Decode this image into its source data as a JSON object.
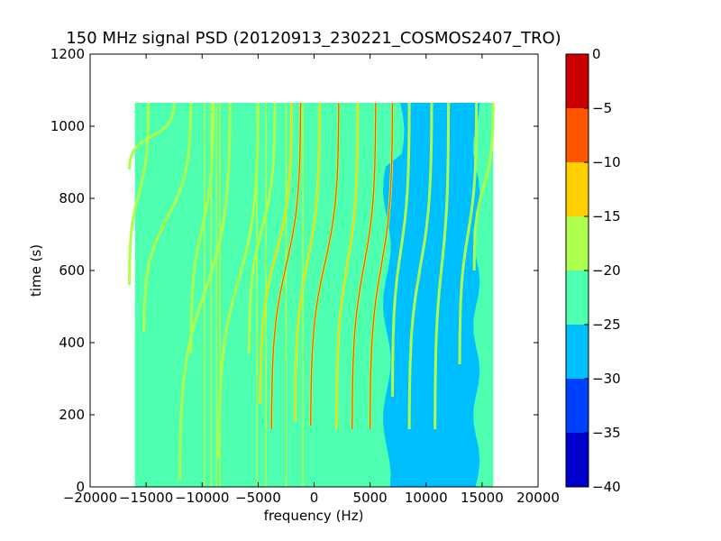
{
  "chart_data": {
    "type": "heatmap",
    "title": "150 MHz signal PSD (20120913_230221_COSMOS2407_TRO)",
    "xlabel": "frequency (Hz)",
    "ylabel": "time (s)",
    "xlim": [
      -20000,
      20000
    ],
    "ylim": [
      0,
      1200
    ],
    "x_ticks": [
      -20000,
      -15000,
      -10000,
      -5000,
      0,
      5000,
      10000,
      15000,
      20000
    ],
    "x_tick_labels": [
      "−20000",
      "−15000",
      "−10000",
      "−5000",
      "0",
      "5000",
      "10000",
      "15000",
      "20000"
    ],
    "y_ticks": [
      0,
      200,
      400,
      600,
      800,
      1000,
      1200
    ],
    "y_tick_labels": [
      "0",
      "200",
      "400",
      "600",
      "800",
      "1000",
      "1200"
    ],
    "data_extent": {
      "x": [
        -16000,
        16000
      ],
      "y": [
        0,
        1065
      ]
    },
    "colorbar": {
      "levels": [
        -40,
        -35,
        -30,
        -25,
        -20,
        -15,
        -10,
        -5,
        0
      ],
      "tick_labels": [
        "−40",
        "−35",
        "−30",
        "−25",
        "−20",
        "−15",
        "−10",
        "−5",
        "0"
      ],
      "colors": [
        "#0000cd",
        "#0040ff",
        "#00bfff",
        "#4dffaf",
        "#afff4d",
        "#ffcf00",
        "#ff5500",
        "#cd0000"
      ]
    },
    "background_level_range": [
      -25,
      -20
    ],
    "quiet_band": {
      "level_range": [
        -30,
        -25
      ],
      "x_range": [
        6500,
        14500
      ]
    },
    "vertical_lines_x": [
      -9800,
      -9200,
      -8700,
      -8400,
      -5100,
      -4300,
      -2500,
      -1000
    ],
    "traces": [
      {
        "x_top": -14800,
        "x_bottom": -16500,
        "y_top": 1065,
        "y_bottom": 560,
        "peak": -15
      },
      {
        "x_top": -12500,
        "x_bottom": -16500,
        "y_top": 1065,
        "y_bottom": 880,
        "peak": -15
      },
      {
        "x_top": -11000,
        "x_bottom": -15200,
        "y_top": 1065,
        "y_bottom": 430,
        "peak": -15
      },
      {
        "x_top": -9000,
        "x_bottom": -11000,
        "y_top": 1065,
        "y_bottom": 370,
        "peak": -15
      },
      {
        "x_top": -7500,
        "x_bottom": -12000,
        "y_top": 1065,
        "y_bottom": 20,
        "peak": -15
      },
      {
        "x_top": -5000,
        "x_bottom": -8500,
        "y_top": 1065,
        "y_bottom": 80,
        "peak": -15
      },
      {
        "x_top": -3500,
        "x_bottom": -5800,
        "y_top": 1065,
        "y_bottom": 370,
        "peak": -15
      },
      {
        "x_top": -2000,
        "x_bottom": -4800,
        "y_top": 1065,
        "y_bottom": 230,
        "peak": -10
      },
      {
        "x_top": -1200,
        "x_bottom": -3800,
        "y_top": 1065,
        "y_bottom": 160,
        "peak": -5
      },
      {
        "x_top": 500,
        "x_bottom": -1700,
        "y_top": 1065,
        "y_bottom": 180,
        "peak": -10
      },
      {
        "x_top": 2200,
        "x_bottom": -300,
        "y_top": 1065,
        "y_bottom": 170,
        "peak": -5
      },
      {
        "x_top": 3900,
        "x_bottom": 2000,
        "y_top": 1065,
        "y_bottom": 160,
        "peak": -10
      },
      {
        "x_top": 5500,
        "x_bottom": 3400,
        "y_top": 1065,
        "y_bottom": 160,
        "peak": -5
      },
      {
        "x_top": 7000,
        "x_bottom": 5000,
        "y_top": 1065,
        "y_bottom": 160,
        "peak": -5
      },
      {
        "x_top": 8500,
        "x_bottom": 7000,
        "y_top": 1065,
        "y_bottom": 250,
        "peak": -15
      },
      {
        "x_top": 10500,
        "x_bottom": 8500,
        "y_top": 1065,
        "y_bottom": 160,
        "peak": -15
      },
      {
        "x_top": 12000,
        "x_bottom": 10800,
        "y_top": 1065,
        "y_bottom": 160,
        "peak": -15
      },
      {
        "x_top": 14500,
        "x_bottom": 13000,
        "y_top": 1065,
        "y_bottom": 340,
        "peak": -15
      },
      {
        "x_top": 16000,
        "x_bottom": 14300,
        "y_top": 1065,
        "y_bottom": 600,
        "peak": -15
      }
    ],
    "grid": false,
    "legend": "colorbar-right"
  }
}
